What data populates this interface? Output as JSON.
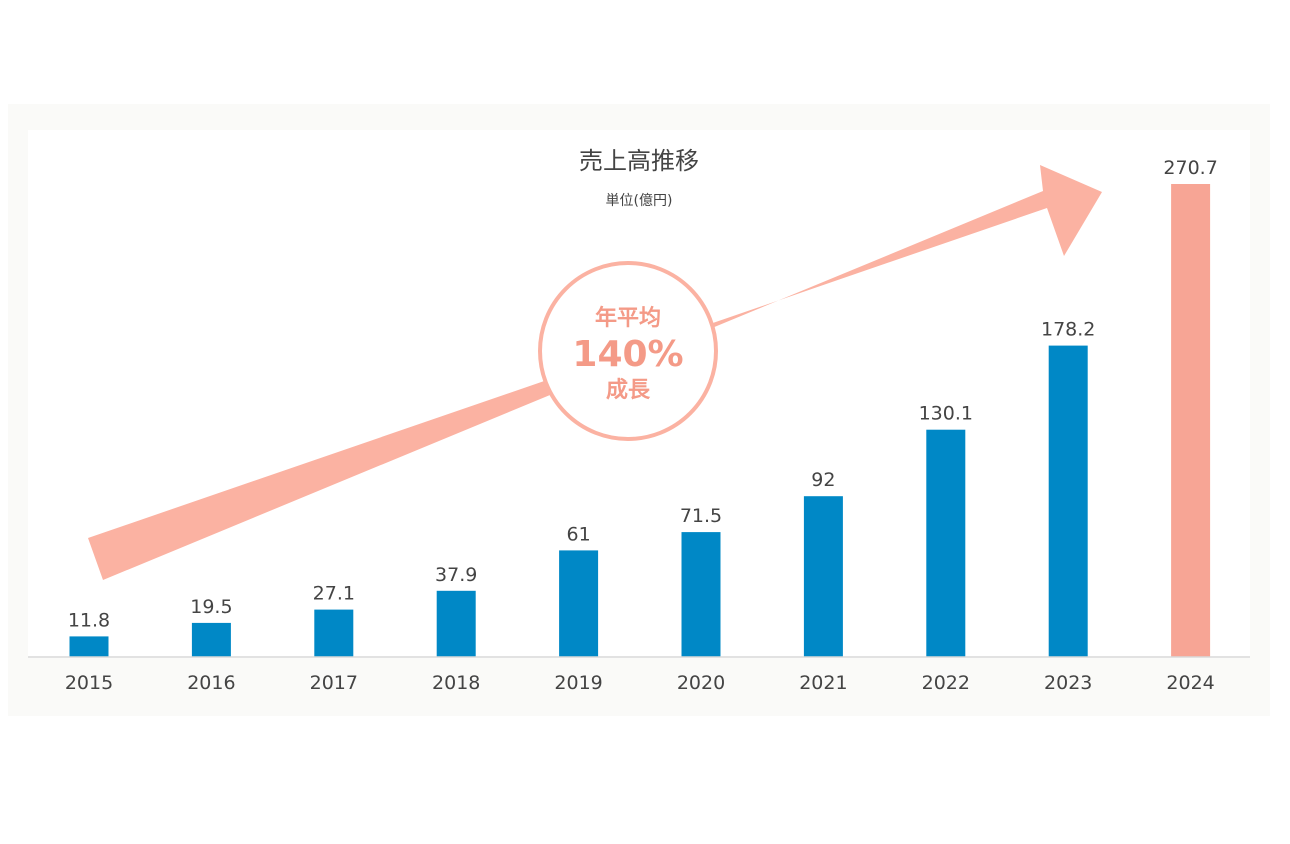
{
  "chart_data": {
    "type": "bar",
    "title": "売上高推移",
    "subtitle": "単位(億円)",
    "categories": [
      "2015",
      "2016",
      "2017",
      "2018",
      "2019",
      "2020",
      "2021",
      "2022",
      "2023",
      "2024"
    ],
    "values": [
      11.8,
      19.5,
      27.1,
      37.9,
      61,
      71.5,
      92,
      130.1,
      178.2,
      270.7
    ],
    "value_labels": [
      "11.8",
      "19.5",
      "27.1",
      "37.9",
      "61",
      "71.5",
      "92",
      "130.1",
      "178.2",
      "270.7"
    ],
    "highlight_index": 9,
    "ylim": [
      0,
      270.7
    ],
    "grid": false,
    "annotation": {
      "line1": "年平均",
      "line2": "140%",
      "line3": "成長"
    },
    "colors": {
      "bar": "#0088c6",
      "highlight_bar": "#f7a595",
      "arrow": "#fbb2a2",
      "annotation_text": "#f49a87",
      "panel": "#fafaf8",
      "plot": "#ffffff",
      "text": "#444444",
      "baseline": "#d9d9d9"
    }
  }
}
